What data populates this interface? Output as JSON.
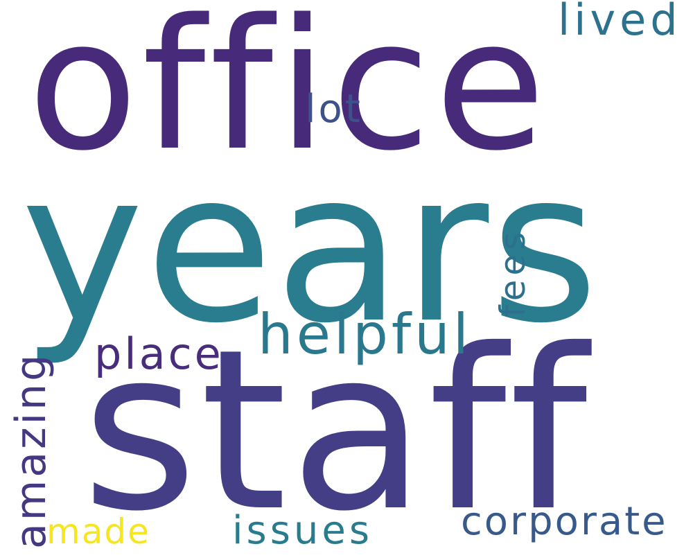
{
  "words": [
    {
      "text": "office",
      "color": "#472a7a"
    },
    {
      "text": "years",
      "color": "#2a7d8e"
    },
    {
      "text": "staff",
      "color": "#433e85"
    },
    {
      "text": "helpful",
      "color": "#2a788e"
    },
    {
      "text": "place",
      "color": "#472d7b"
    },
    {
      "text": "lived",
      "color": "#2c728e"
    },
    {
      "text": "lot",
      "color": "#3b528b"
    },
    {
      "text": "corporate",
      "color": "#38598c"
    },
    {
      "text": "issues",
      "color": "#287c8e"
    },
    {
      "text": "made",
      "color": "#f5e61e"
    },
    {
      "text": "amazing",
      "color": "#453781"
    },
    {
      "text": "fees",
      "color": "#2d708e"
    }
  ]
}
